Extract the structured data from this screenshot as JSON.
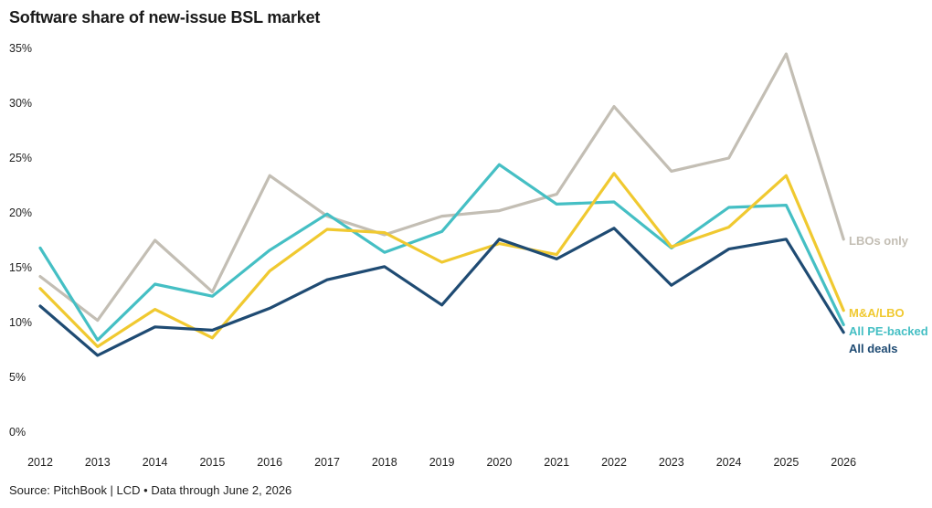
{
  "chart_data": {
    "type": "line",
    "title": "Software share of new-issue BSL market",
    "xlabel": "",
    "ylabel": "",
    "x": [
      "2012",
      "2013",
      "2014",
      "2015",
      "2016",
      "2017",
      "2018",
      "2019",
      "2020",
      "2021",
      "2022",
      "2023",
      "2024",
      "2025",
      "2026"
    ],
    "ylim": [
      0,
      35
    ],
    "yticks": [
      "0%",
      "5%",
      "10%",
      "15%",
      "20%",
      "25%",
      "30%",
      "35%"
    ],
    "grid": false,
    "legend": "end-of-line labels",
    "series": [
      {
        "name": "LBOs only",
        "color": "#c3beb4",
        "values": [
          14.2,
          10.2,
          17.5,
          12.8,
          23.4,
          19.7,
          18.0,
          19.7,
          20.2,
          21.7,
          29.7,
          23.8,
          25.0,
          34.5,
          17.6
        ]
      },
      {
        "name": "All PE-backed",
        "color": "#45bfc4",
        "values": [
          16.8,
          8.4,
          13.5,
          12.4,
          16.6,
          19.9,
          16.4,
          18.3,
          24.4,
          20.8,
          21.0,
          16.8,
          20.5,
          20.7,
          9.8
        ]
      },
      {
        "name": "M&A/LBO",
        "color": "#f0c930",
        "values": [
          13.1,
          7.8,
          11.2,
          8.6,
          14.7,
          18.5,
          18.2,
          15.5,
          17.2,
          16.2,
          23.6,
          16.9,
          18.7,
          23.4,
          11.1
        ]
      },
      {
        "name": "All deals",
        "color": "#1f4b73",
        "values": [
          11.5,
          7.0,
          9.6,
          9.3,
          11.3,
          13.9,
          15.1,
          11.6,
          17.6,
          15.8,
          18.6,
          13.4,
          16.7,
          17.6,
          9.1
        ]
      }
    ]
  },
  "source": "Source: PitchBook | LCD • Data through June 2, 2026"
}
